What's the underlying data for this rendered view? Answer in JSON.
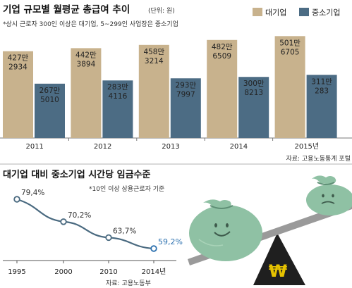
{
  "chart_data": [
    {
      "type": "bar",
      "title": "기업 규모별 월평균 총급여 추이",
      "unit_note": "(단위: 원)",
      "subnote": "*상시 근로자 300인 이상은 대기업, 5~299인 사업장은 중소기업",
      "categories": [
        "2011",
        "2012",
        "2013",
        "2014",
        "2015년"
      ],
      "series": [
        {
          "name": "대기업",
          "color": "#c8b28d",
          "values": [
            4272934,
            4423894,
            4583214,
            4826509,
            5016705
          ],
          "labels": [
            [
              "427만",
              "2934"
            ],
            [
              "442만",
              "3894"
            ],
            [
              "458만",
              "3214"
            ],
            [
              "482만",
              "6509"
            ],
            [
              "501만",
              "6705"
            ]
          ]
        },
        {
          "name": "중소기업",
          "color": "#4c6c84",
          "values": [
            2675010,
            2834116,
            2937997,
            3008213,
            3110283
          ],
          "labels": [
            [
              "267만",
              "5010"
            ],
            [
              "283만",
              "4116"
            ],
            [
              "293만",
              "7997"
            ],
            [
              "300만",
              "8213"
            ],
            [
              "311만",
              "283"
            ]
          ]
        }
      ],
      "source": "자료: 고용노동통계 포털"
    },
    {
      "type": "line",
      "title": "대기업 대비 중소기업 시간당 임금수준",
      "subnote": "*10인 이상 상용근로자 기준",
      "x": [
        "1995",
        "2000",
        "2010",
        "2014년"
      ],
      "series": [
        {
          "values": [
            79.4,
            70.2,
            63.7,
            59.2
          ],
          "labels": [
            "79,4%",
            "70,2%",
            "63,7%",
            "59,2%"
          ],
          "color": "#4a6a80",
          "highlight_color": "#2e72b0"
        }
      ],
      "source": "자료: 고용노동부"
    }
  ],
  "illustration": {
    "name": "seesaw-money-bags",
    "symbol": "₩",
    "bag_color": "#8fc1a4",
    "fulcrum_color": "#1f1f1f",
    "symbol_color": "#e6c200"
  }
}
